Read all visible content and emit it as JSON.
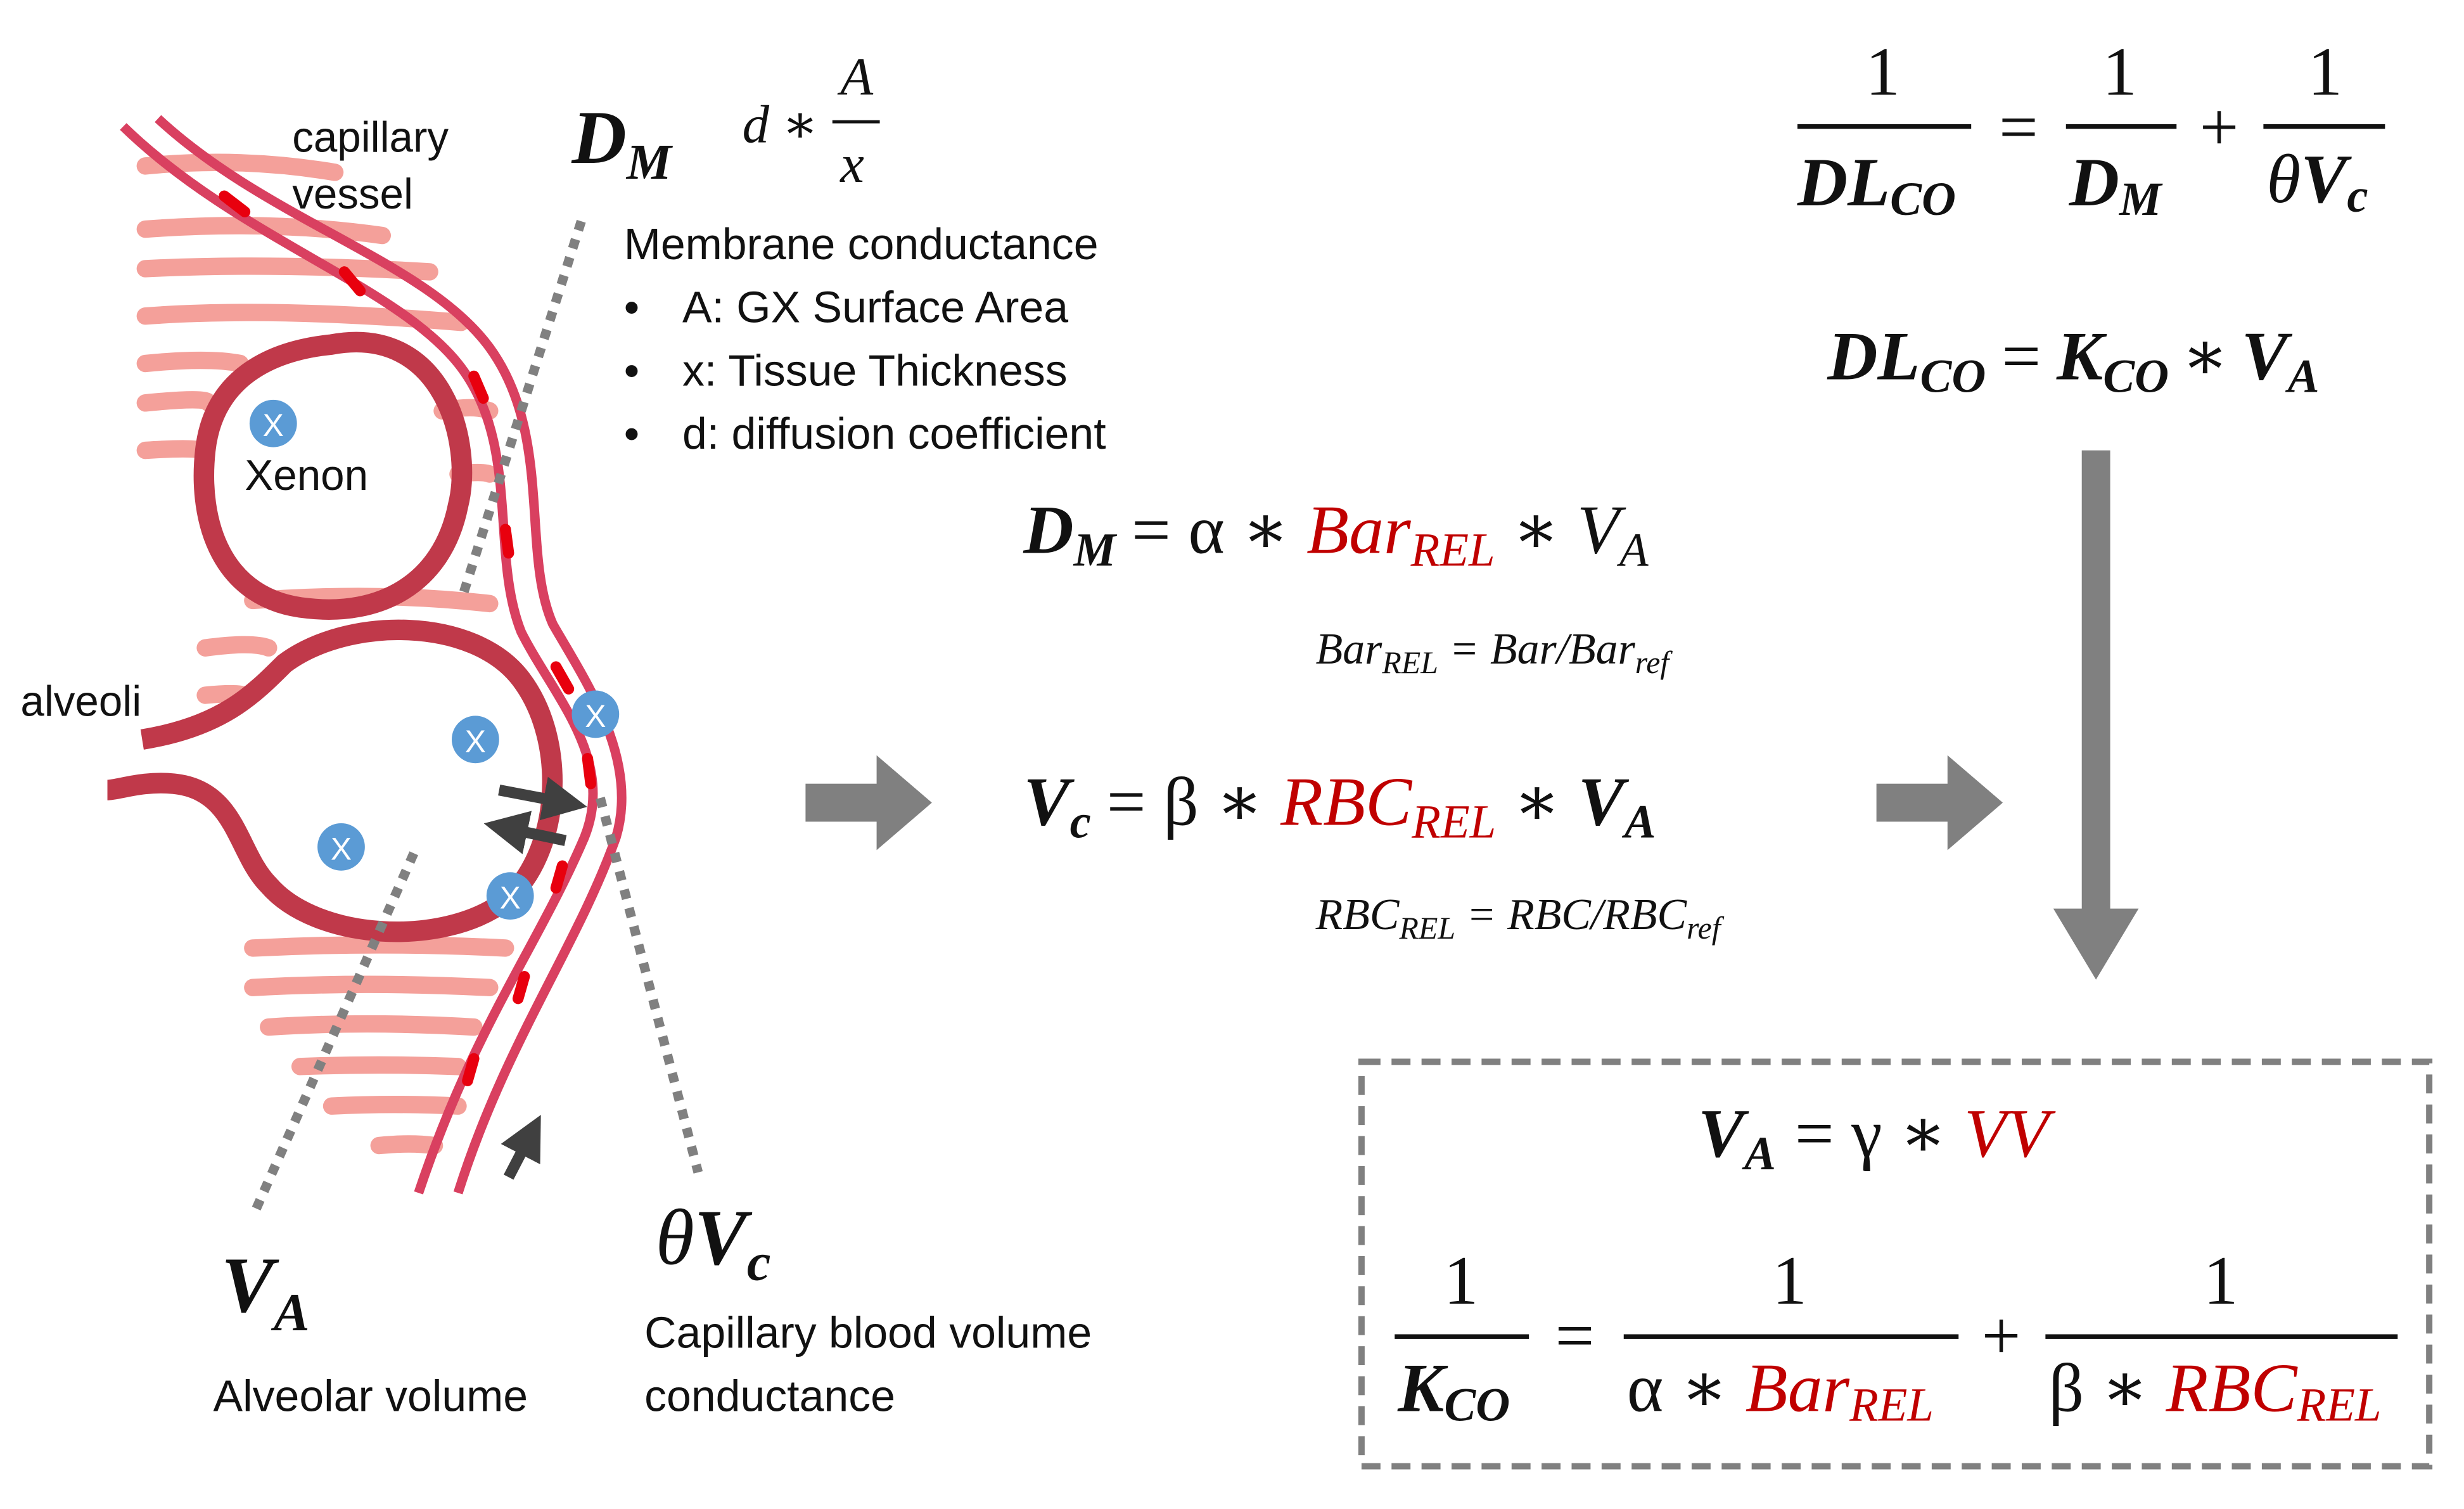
{
  "illustration": {
    "capillary_label": [
      "capillary",
      "vessel"
    ],
    "xenon_label": "Xenon",
    "alveoli_label": "alveoli",
    "xenon_marker": "X",
    "colors": {
      "alveoli": "#c0394a",
      "vessel": "#d94060",
      "tissue": "#f4a09a",
      "rbc": "#e8000e",
      "xenon": "#5b9bd5",
      "dotted": "#808080"
    }
  },
  "membrane": {
    "symbol": "D",
    "symbol_sub": "M",
    "formula": {
      "d": "d",
      "op": "∗",
      "num": "A",
      "den": "x"
    },
    "title": "Membrane conductance",
    "bullets": [
      "A: GX Surface Area",
      "x: Tissue Thickness",
      "d: diffusion coefficient"
    ]
  },
  "alveolar": {
    "symbol": "V",
    "sub": "A",
    "label": "Alveolar volume"
  },
  "capillary": {
    "theta": "θ",
    "symbol": "V",
    "sub": "c",
    "label_lines": [
      "Capillary blood volume",
      "conductance"
    ]
  },
  "equations": {
    "top_fraction": {
      "one": "1",
      "dl": "DL",
      "co": "CO",
      "eq": "=",
      "plus": "+",
      "dm": "D",
      "m": "M",
      "theta": "θ",
      "v": "V",
      "c": "c"
    },
    "dlco": {
      "dl": "DL",
      "co": "CO",
      "eq": "=",
      "k": "K",
      "kco": "CO",
      "op": "∗",
      "v": "V",
      "a": "A"
    },
    "dm_eq": {
      "d": "D",
      "m": "M",
      "rhs_pre": "= α ∗ ",
      "bar": "Bar",
      "rel": "REL",
      "op": " ∗ ",
      "v": "V",
      "a": "A"
    },
    "bar_rel": {
      "bar": "Bar",
      "rel": "REL",
      "eq": " = Bar/Bar",
      "ref": "ref"
    },
    "vc_eq": {
      "v": "V",
      "c": "c",
      "rhs_pre": "= β ∗ ",
      "rbc": "RBC",
      "rel": "REL",
      "op": " ∗ ",
      "va": "V",
      "a": "A"
    },
    "rbc_rel": {
      "rbc": "RBC",
      "rel": "REL",
      "eq": " = RBC/RBC",
      "ref": "ref"
    },
    "va_eq": {
      "v": "V",
      "a": "A",
      "rhs_pre": "=  γ ∗ ",
      "vv": "VV"
    },
    "kco_fraction": {
      "one": "1",
      "k": "K",
      "co": "CO",
      "eq": "=",
      "plus": "+",
      "alpha": "α ∗ ",
      "bar": "Bar",
      "rel": "REL",
      "beta": "β ∗ ",
      "rbc": "RBC"
    }
  }
}
